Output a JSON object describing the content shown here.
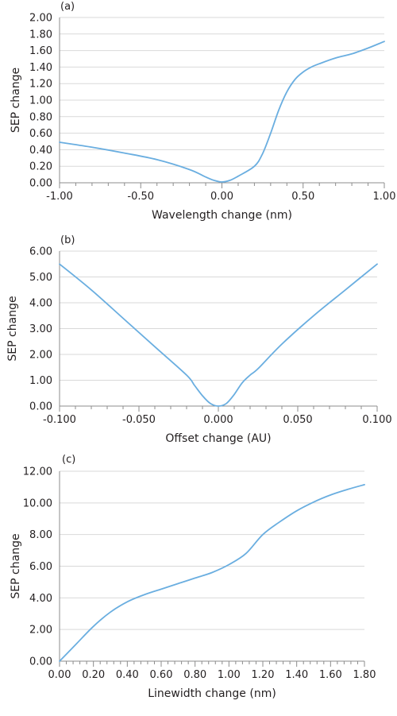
{
  "colors": {
    "series": "#6aaee0",
    "grid": "#d9d9d9",
    "axis": "#8c8c8c"
  },
  "chart_data": [
    {
      "type": "line",
      "panel_label": "(a)",
      "title": "",
      "xlabel": "Wavelength change (nm)",
      "ylabel": "SEP change",
      "xlim": [
        -1.0,
        1.0
      ],
      "ylim": [
        0.0,
        2.0
      ],
      "x_ticks": [
        "-1.00",
        "-0.50",
        "0.00",
        "0.50",
        "1.00"
      ],
      "y_ticks": [
        "0.00",
        "0.20",
        "0.40",
        "0.60",
        "0.80",
        "1.00",
        "1.20",
        "1.40",
        "1.60",
        "1.80",
        "2.00"
      ],
      "grid": true,
      "series": [
        {
          "color": "#6aaee0",
          "x": [
            -1.0,
            -0.8,
            -0.6,
            -0.4,
            -0.2,
            -0.1,
            -0.05,
            0.0,
            0.05,
            0.1,
            0.2,
            0.25,
            0.3,
            0.35,
            0.4,
            0.45,
            0.5,
            0.55,
            0.6,
            0.7,
            0.8,
            0.9,
            1.0
          ],
          "values": [
            0.49,
            0.43,
            0.36,
            0.28,
            0.16,
            0.07,
            0.03,
            0.01,
            0.03,
            0.08,
            0.2,
            0.35,
            0.6,
            0.88,
            1.1,
            1.25,
            1.34,
            1.4,
            1.44,
            1.51,
            1.56,
            1.63,
            1.71
          ]
        }
      ]
    },
    {
      "type": "line",
      "panel_label": "(b)",
      "title": "",
      "xlabel": "Offset change (AU)",
      "ylabel": "SEP change",
      "xlim": [
        -0.1,
        0.1
      ],
      "ylim": [
        0.0,
        6.0
      ],
      "x_ticks": [
        "-0.100",
        "-0.050",
        "0.000",
        "0.050",
        "0.100"
      ],
      "y_ticks": [
        "0.00",
        "1.00",
        "2.00",
        "3.00",
        "4.00",
        "5.00",
        "6.00"
      ],
      "grid": true,
      "series": [
        {
          "color": "#6aaee0",
          "x": [
            -0.1,
            -0.08,
            -0.06,
            -0.04,
            -0.02,
            -0.015,
            -0.01,
            -0.005,
            0.0,
            0.005,
            0.01,
            0.015,
            0.02,
            0.025,
            0.04,
            0.06,
            0.08,
            0.1
          ],
          "values": [
            5.5,
            4.5,
            3.4,
            2.3,
            1.2,
            0.8,
            0.4,
            0.1,
            0.0,
            0.1,
            0.45,
            0.9,
            1.2,
            1.45,
            2.4,
            3.5,
            4.5,
            5.5
          ]
        }
      ]
    },
    {
      "type": "line",
      "panel_label": "(c)",
      "title": "",
      "xlabel": "Linewidth change (nm)",
      "ylabel": "SEP change",
      "xlim": [
        0.0,
        1.8
      ],
      "ylim": [
        0.0,
        12.0
      ],
      "x_ticks": [
        "0.00",
        "0.20",
        "0.40",
        "0.60",
        "0.80",
        "1.00",
        "1.20",
        "1.40",
        "1.60",
        "1.80"
      ],
      "y_ticks": [
        "0.00",
        "2.00",
        "4.00",
        "6.00",
        "8.00",
        "10.00",
        "12.00"
      ],
      "grid": true,
      "series": [
        {
          "color": "#6aaee0",
          "x": [
            0.0,
            0.1,
            0.2,
            0.3,
            0.4,
            0.5,
            0.6,
            0.7,
            0.8,
            0.9,
            1.0,
            1.1,
            1.2,
            1.3,
            1.4,
            1.5,
            1.6,
            1.7,
            1.8
          ],
          "values": [
            0.0,
            1.1,
            2.2,
            3.1,
            3.75,
            4.2,
            4.55,
            4.9,
            5.25,
            5.6,
            6.1,
            6.8,
            8.0,
            8.8,
            9.5,
            10.05,
            10.5,
            10.85,
            11.15
          ]
        }
      ]
    }
  ]
}
